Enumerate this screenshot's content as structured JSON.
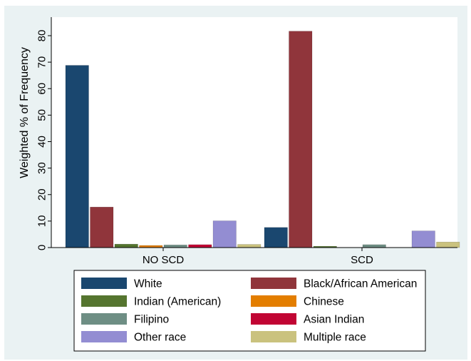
{
  "chart_data": {
    "type": "bar",
    "categories": [
      "NO SCD",
      "SCD"
    ],
    "ylabel": "Weighted % of Frequency",
    "xlabel": "",
    "ylim": [
      0,
      87
    ],
    "yticks": [
      0,
      10,
      20,
      30,
      40,
      50,
      60,
      70,
      80
    ],
    "grid": false,
    "legend_position": "bottom",
    "legend_columns": 2,
    "series": [
      {
        "name": "White",
        "values": [
          68.8,
          7.6
        ],
        "color": "#1a476f"
      },
      {
        "name": "Black/African American",
        "values": [
          15.3,
          81.7
        ],
        "color": "#90353b"
      },
      {
        "name": "Indian (American)",
        "values": [
          1.3,
          0.5
        ],
        "color": "#55752f"
      },
      {
        "name": "Chinese",
        "values": [
          0.8,
          0.0
        ],
        "color": "#e37e00"
      },
      {
        "name": "Filipino",
        "values": [
          1.0,
          1.1
        ],
        "color": "#6e8e84"
      },
      {
        "name": "Asian Indian",
        "values": [
          1.1,
          0.0
        ],
        "color": "#c10534"
      },
      {
        "name": "Other race",
        "values": [
          10.1,
          6.3
        ],
        "color": "#938dd2"
      },
      {
        "name": "Multiple race",
        "values": [
          1.2,
          2.1
        ],
        "color": "#cac27e"
      }
    ]
  }
}
